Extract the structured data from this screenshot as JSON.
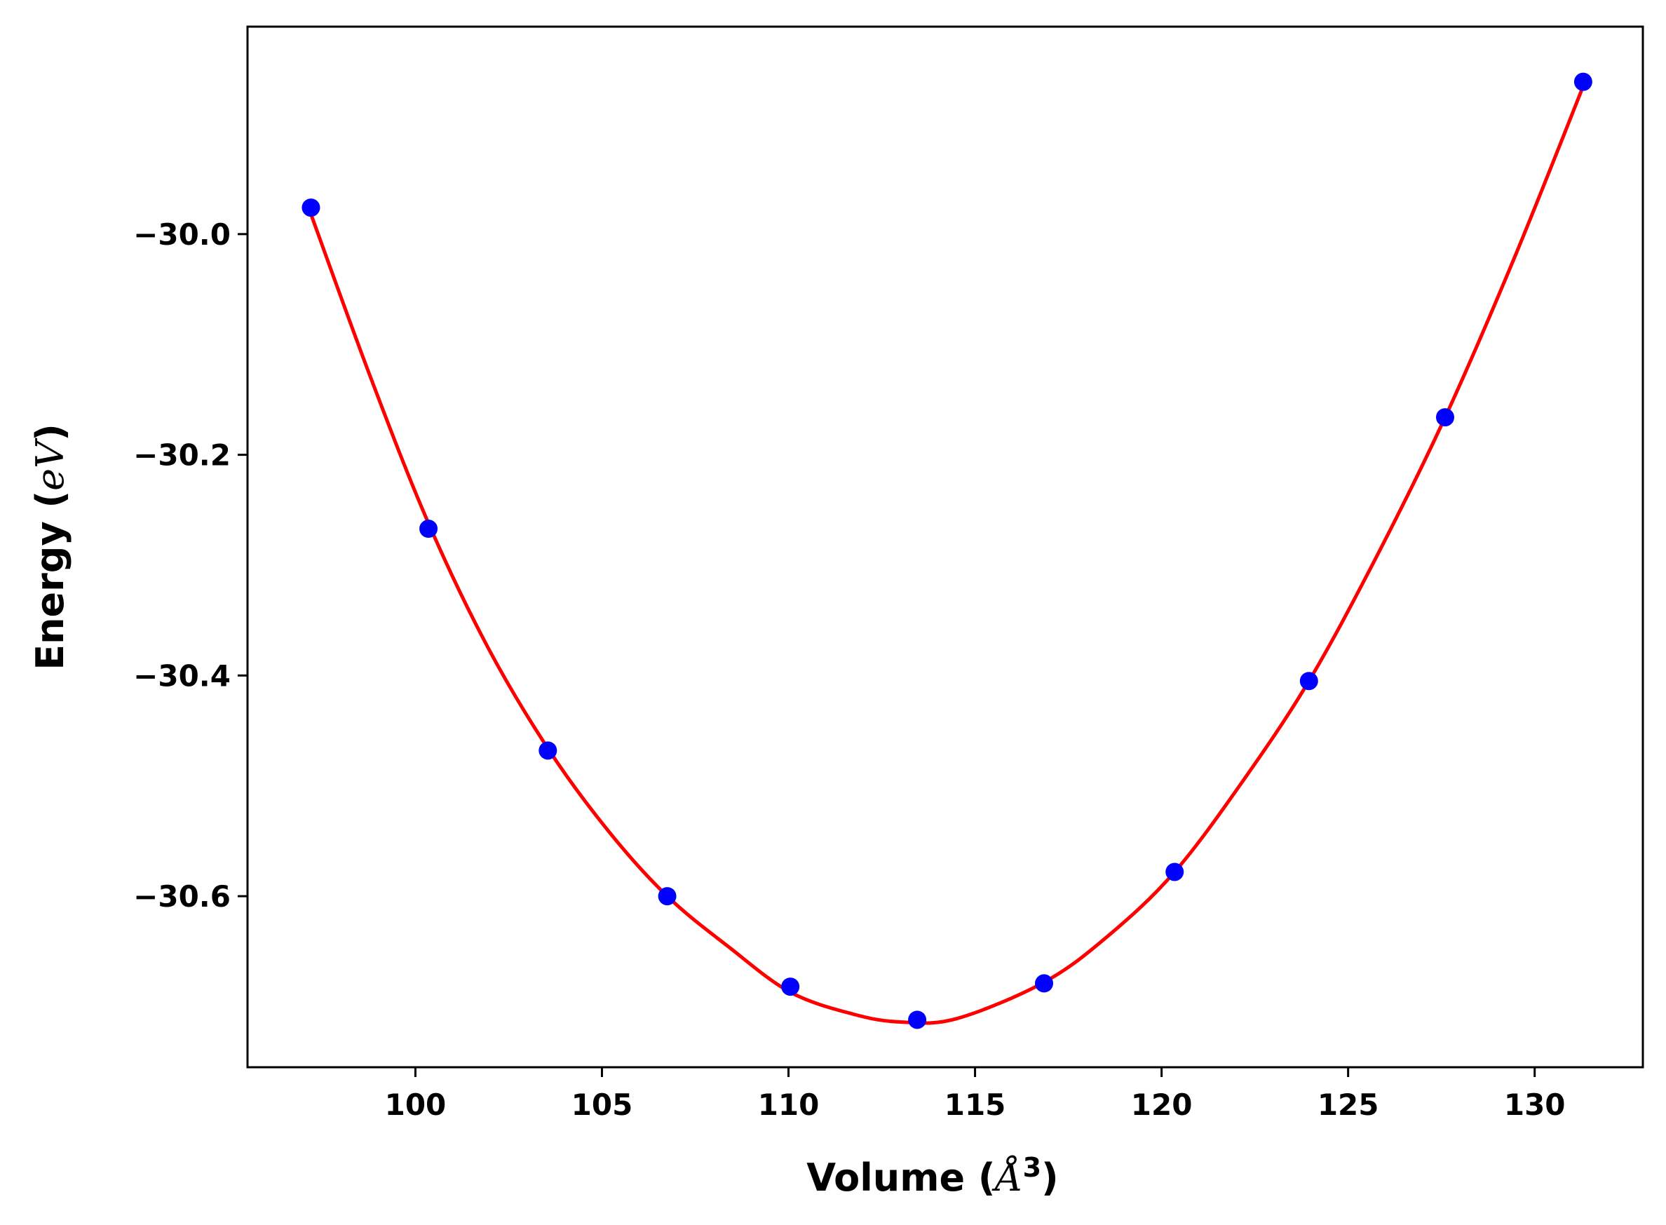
{
  "chart_data": {
    "type": "scatter",
    "xlabel": "Volume (Å³)",
    "ylabel": "Energy (eV)",
    "xlabel_parts": {
      "prefix": "Volume (",
      "symbol": "Å",
      "superscript": "3",
      "suffix": ")"
    },
    "ylabel_parts": {
      "prefix": "Energy (",
      "symbol": "eV",
      "suffix": ")"
    },
    "xlim": [
      95.5,
      132.9
    ],
    "ylim": [
      -30.755,
      -29.812
    ],
    "xticks": [
      100,
      105,
      110,
      115,
      120,
      125,
      130
    ],
    "xtick_labels": [
      "100",
      "105",
      "110",
      "115",
      "120",
      "125",
      "130"
    ],
    "yticks": [
      -30.0,
      -30.2,
      -30.4,
      -30.6
    ],
    "ytick_labels": [
      "−30.0",
      "−30.2",
      "−30.4",
      "−30.6"
    ],
    "grid": false,
    "series": [
      {
        "kind": "points",
        "color": "#0000ff",
        "points": [
          {
            "x": 97.2,
            "y": -29.976
          },
          {
            "x": 100.35,
            "y": -30.267
          },
          {
            "x": 103.55,
            "y": -30.468
          },
          {
            "x": 106.75,
            "y": -30.6
          },
          {
            "x": 110.05,
            "y": -30.682
          },
          {
            "x": 113.45,
            "y": -30.712
          },
          {
            "x": 116.85,
            "y": -30.679
          },
          {
            "x": 120.35,
            "y": -30.578
          },
          {
            "x": 123.95,
            "y": -30.405
          },
          {
            "x": 127.6,
            "y": -30.166
          },
          {
            "x": 131.3,
            "y": -29.862
          }
        ]
      },
      {
        "kind": "fit-curve",
        "color": "#ff0000",
        "points": [
          {
            "x": 97.2,
            "y": -29.982
          },
          {
            "x": 98.8,
            "y": -30.13
          },
          {
            "x": 100.35,
            "y": -30.262
          },
          {
            "x": 101.95,
            "y": -30.375
          },
          {
            "x": 103.55,
            "y": -30.466
          },
          {
            "x": 105.15,
            "y": -30.54
          },
          {
            "x": 106.75,
            "y": -30.6
          },
          {
            "x": 108.4,
            "y": -30.646
          },
          {
            "x": 110.05,
            "y": -30.687
          },
          {
            "x": 111.75,
            "y": -30.707
          },
          {
            "x": 113.0,
            "y": -30.714
          },
          {
            "x": 114.5,
            "y": -30.711
          },
          {
            "x": 116.85,
            "y": -30.678
          },
          {
            "x": 118.6,
            "y": -30.635
          },
          {
            "x": 120.35,
            "y": -30.578
          },
          {
            "x": 122.15,
            "y": -30.497
          },
          {
            "x": 123.95,
            "y": -30.405
          },
          {
            "x": 125.75,
            "y": -30.293
          },
          {
            "x": 127.6,
            "y": -30.166
          },
          {
            "x": 129.45,
            "y": -30.022
          },
          {
            "x": 131.3,
            "y": -29.866
          }
        ]
      }
    ]
  }
}
